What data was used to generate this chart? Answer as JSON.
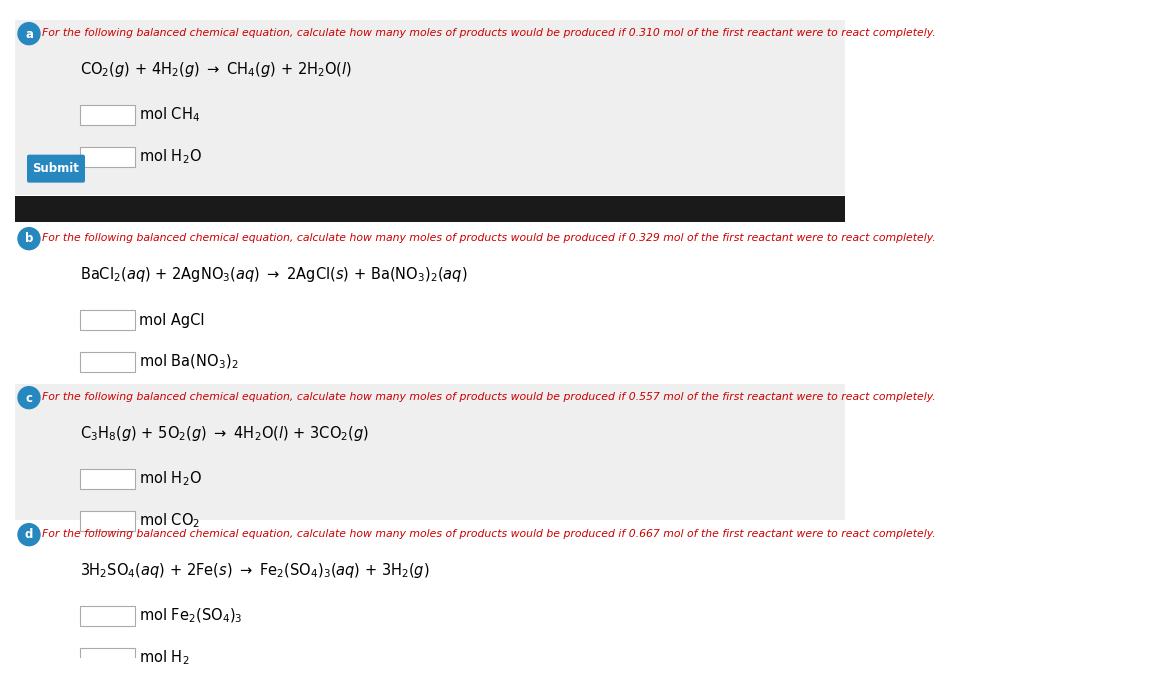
{
  "bg_color": "#ffffff",
  "section_a_bg": "#efefef",
  "section_b_bg": "#ffffff",
  "section_c_bg": "#efefef",
  "section_d_bg": "#ffffff",
  "divider_color": "#1a1a1a",
  "button_color": "#2788c0",
  "button_text_color": "#ffffff",
  "circle_bg": "#2788c0",
  "circle_text_color": "#ffffff",
  "instruction_color": "#cc0000",
  "text_color": "#000000",
  "submit_label": "Submit",
  "sections": [
    {
      "letter": "a",
      "mol": "0.310",
      "equation": "CO$_2$($g$) + 4H$_2$($g$) $\\rightarrow$ CH$_4$($g$) + 2H$_2$O($l$)",
      "products": [
        "mol CH$_4$",
        "mol H$_2$O"
      ],
      "show_submit": true,
      "bg": "#efefef"
    },
    {
      "letter": "b",
      "mol": "0.329",
      "equation": "BaCl$_2$($aq$) + 2AgNO$_3$($aq$) $\\rightarrow$ 2AgCl($s$) + Ba(NO$_3$)$_2$($aq$)",
      "products": [
        "mol AgCl",
        "mol Ba(NO$_3$)$_2$"
      ],
      "show_submit": false,
      "bg": "#ffffff"
    },
    {
      "letter": "c",
      "mol": "0.557",
      "equation": "C$_3$H$_8$($g$) + 5O$_2$($g$) $\\rightarrow$ 4H$_2$O($l$) + 3CO$_2$($g$)",
      "products": [
        "mol H$_2$O",
        "mol CO$_2$"
      ],
      "show_submit": false,
      "bg": "#efefef"
    },
    {
      "letter": "d",
      "mol": "0.667",
      "equation": "3H$_2$SO$_4$($aq$) + 2Fe($s$) $\\rightarrow$ Fe$_2$(SO$_4$)$_3$($aq$) + 3H$_2$($g$)",
      "products": [
        "mol Fe$_2$(SO$_4$)$_3$",
        "mol H$_2$"
      ],
      "show_submit": false,
      "bg": "#ffffff"
    }
  ],
  "instruction_template": "For the following balanced chemical equation, calculate how many moles of products would be produced if {mol} mol of the first reactant were to react completely."
}
